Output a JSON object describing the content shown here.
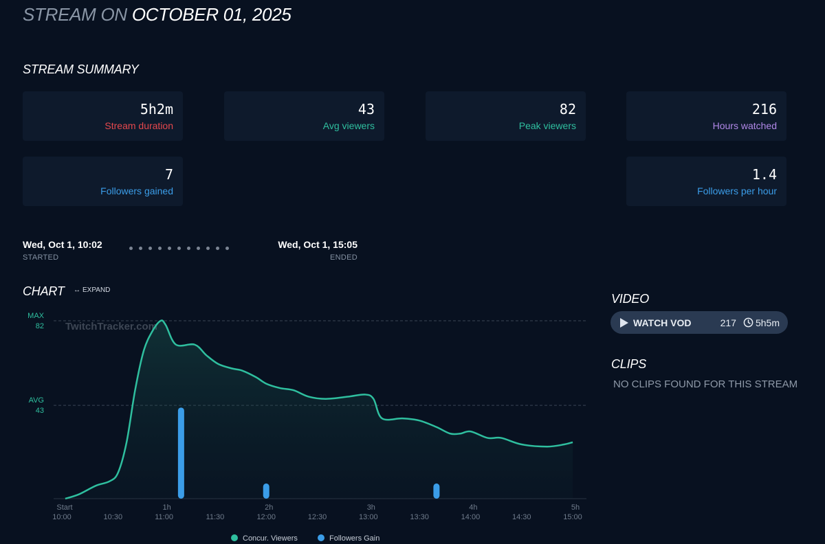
{
  "header": {
    "title_prefix": "STREAM ON",
    "title_date": "OCTOBER 01, 2025"
  },
  "summary": {
    "title": "STREAM SUMMARY",
    "stats": {
      "duration": {
        "value": "5h2m",
        "label": "Stream duration",
        "color": "#e5484d"
      },
      "avg_viewers": {
        "value": "43",
        "label": "Avg viewers",
        "color": "#2fbf9f"
      },
      "peak_viewers": {
        "value": "82",
        "label": "Peak viewers",
        "color": "#2fbf9f"
      },
      "hours_watched": {
        "value": "216",
        "label": "Hours watched",
        "color": "#b088e8"
      },
      "followers_gained": {
        "value": "7",
        "label": "Followers gained",
        "color": "#3b9de8"
      },
      "followers_per_hour": {
        "value": "1.4",
        "label": "Followers per hour",
        "color": "#3b9de8"
      }
    }
  },
  "timeline": {
    "started": {
      "when": "Wed, Oct 1, 10:02",
      "tag": "STARTED"
    },
    "ended": {
      "when": "Wed, Oct 1, 15:05",
      "tag": "ENDED"
    }
  },
  "chart_section": {
    "title": "CHART",
    "expand_label": "EXPAND",
    "watermark": "TwitchTracker.com"
  },
  "chart_data": {
    "type": "line",
    "x_range": [
      0,
      302
    ],
    "y_range": [
      0,
      82
    ],
    "max_line": {
      "label": "MAX",
      "value": 82
    },
    "avg_line": {
      "label": "AVG",
      "value": 43
    },
    "x_ticks": [
      {
        "min": 0,
        "label": "Start",
        "clock": "10:00"
      },
      {
        "min": 30,
        "label": "",
        "clock": "10:30"
      },
      {
        "min": 60,
        "label": "1h",
        "clock": "11:00"
      },
      {
        "min": 90,
        "label": "",
        "clock": "11:30"
      },
      {
        "min": 120,
        "label": "2h",
        "clock": "12:00"
      },
      {
        "min": 150,
        "label": "",
        "clock": "12:30"
      },
      {
        "min": 180,
        "label": "3h",
        "clock": "13:00"
      },
      {
        "min": 210,
        "label": "",
        "clock": "13:30"
      },
      {
        "min": 240,
        "label": "4h",
        "clock": "14:00"
      },
      {
        "min": 270,
        "label": "",
        "clock": "14:30"
      },
      {
        "min": 300,
        "label": "5h",
        "clock": "15:00"
      }
    ],
    "series": [
      {
        "name": "Concur. Viewers",
        "color": "#2fbf9f",
        "points": [
          [
            2,
            0
          ],
          [
            10,
            2
          ],
          [
            20,
            6
          ],
          [
            28,
            8
          ],
          [
            33,
            12
          ],
          [
            38,
            26
          ],
          [
            43,
            50
          ],
          [
            48,
            68
          ],
          [
            53,
            77
          ],
          [
            58,
            82
          ],
          [
            61,
            80
          ],
          [
            67,
            71
          ],
          [
            78,
            71
          ],
          [
            85,
            66
          ],
          [
            92,
            62
          ],
          [
            100,
            60
          ],
          [
            106,
            59
          ],
          [
            114,
            56
          ],
          [
            120,
            53
          ],
          [
            128,
            51
          ],
          [
            136,
            50
          ],
          [
            145,
            47
          ],
          [
            155,
            46
          ],
          [
            168,
            47
          ],
          [
            178,
            48
          ],
          [
            183,
            46
          ],
          [
            188,
            37
          ],
          [
            200,
            37
          ],
          [
            210,
            36
          ],
          [
            220,
            33
          ],
          [
            228,
            30
          ],
          [
            234,
            30
          ],
          [
            240,
            31
          ],
          [
            250,
            28
          ],
          [
            258,
            28
          ],
          [
            270,
            25
          ],
          [
            285,
            24
          ],
          [
            295,
            25
          ],
          [
            300,
            26
          ]
        ]
      },
      {
        "name": "Followers Gain",
        "color": "#3b9de8",
        "type": "bar",
        "points": [
          [
            70,
            42
          ],
          [
            120,
            7
          ],
          [
            220,
            7
          ]
        ]
      }
    ],
    "legend": [
      "Concur. Viewers",
      "Followers Gain"
    ]
  },
  "video": {
    "title": "VIDEO",
    "button_label": "WATCH VOD",
    "views": "217",
    "duration": "5h5m"
  },
  "clips": {
    "title": "CLIPS",
    "empty_text": "NO CLIPS FOUND FOR THIS STREAM"
  }
}
